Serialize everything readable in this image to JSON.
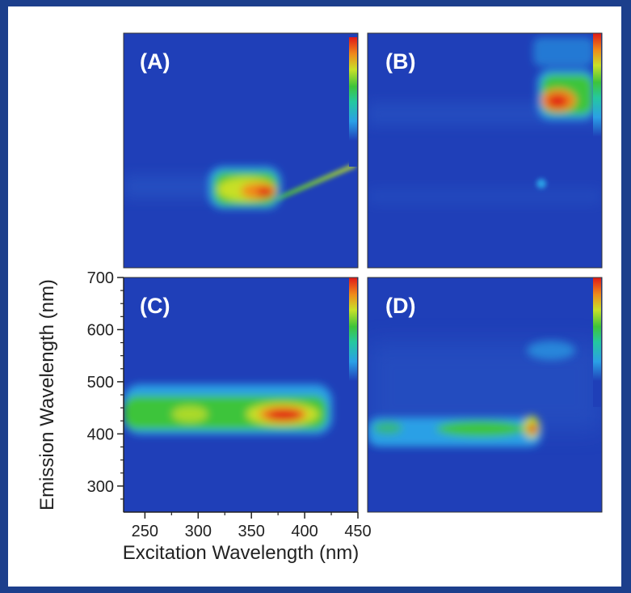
{
  "chart_data": {
    "type": "heatmap",
    "layout": "2x2 grid of excitation-emission maps sharing axes",
    "xlabel": "Excitation Wavelength (nm)",
    "ylabel": "Emission Wavelength (nm)",
    "xlim": [
      230,
      450
    ],
    "ylim": [
      250,
      700
    ],
    "x_ticks": [
      250,
      300,
      350,
      400,
      450
    ],
    "y_ticks": [
      300,
      400,
      500,
      600,
      700
    ],
    "colormap": "jet",
    "background_color": "#1f3fb8",
    "colorbar": "jet color bar at right edge of each panel (no tick labels)",
    "panels": [
      {
        "label": "(A)",
        "features": [
          {
            "shape": "blob",
            "ex": [
              315,
              365
            ],
            "em": [
              420,
              475
            ],
            "center": [
              350,
              430
            ],
            "peak": 1.0
          },
          {
            "shape": "line",
            "from": [
              360,
              440
            ],
            "to": [
              447,
              525
            ],
            "peak": 0.55
          }
        ]
      },
      {
        "label": "(B)",
        "features": [
          {
            "shape": "blob",
            "ex": [
              420,
              450
            ],
            "em": [
              600,
              680
            ],
            "center": [
              430,
              640
            ],
            "peak": 1.0
          },
          {
            "shape": "spot",
            "center": [
              419,
              450
            ],
            "peak": 0.4
          },
          {
            "shape": "band",
            "em": [
              580,
              600
            ],
            "peak": 0.1
          }
        ]
      },
      {
        "label": "(C)",
        "features": [
          {
            "shape": "band",
            "ex": [
              230,
              425
            ],
            "em": [
              405,
              455
            ],
            "center": [
              380,
              425
            ],
            "peak": 1.0
          }
        ]
      },
      {
        "label": "(D)",
        "features": [
          {
            "shape": "band",
            "ex": [
              230,
              415
            ],
            "em": [
              390,
              420
            ],
            "peak": 0.55
          },
          {
            "shape": "spot",
            "center": [
              410,
              400
            ],
            "peak": 1.0
          },
          {
            "shape": "spot",
            "center": [
              415,
              565
            ],
            "peak": 0.35
          },
          {
            "shape": "band",
            "em": [
              520,
              580
            ],
            "peak": 0.15
          }
        ]
      }
    ]
  }
}
